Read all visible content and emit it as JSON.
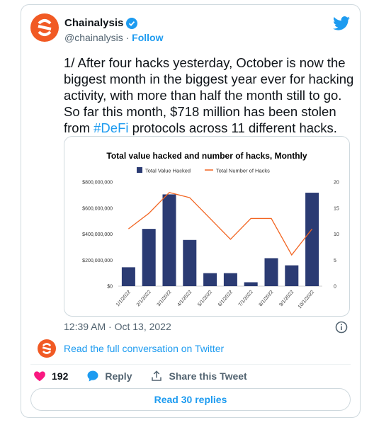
{
  "tweet": {
    "author_name": "Chainalysis",
    "author_handle": "@chainalysis",
    "follow_label": "Follow",
    "text_before_hashtag": "1/ After four hacks yesterday, October is now the biggest month in the biggest year ever for hacking activity, with more than half the month still to go. So far this month, $718 million has been stolen from ",
    "hashtag": "#DeFi",
    "text_after_hashtag": " protocols across 11 different hacks.",
    "timestamp": "12:39 AM · Oct 13, 2022",
    "read_conversation": "Read the full conversation on Twitter",
    "like_count": "192",
    "reply_label": "Reply",
    "share_label": "Share this Tweet",
    "read_replies": "Read 30 replies"
  },
  "colors": {
    "accent": "#1d9bf0",
    "like": "#f91880",
    "brand_orange": "#f15a24",
    "bar": "#2b3b73",
    "line": "#f26522"
  },
  "icons": {
    "logo": "chainalysis-logo-icon",
    "verified": "verified-badge-icon",
    "twitter": "twitter-bird-icon",
    "info": "info-icon",
    "like": "heart-icon",
    "reply": "speech-bubble-icon",
    "share": "share-icon"
  },
  "chart_data": {
    "type": "bar",
    "title": "Total value hacked and number of hacks, Monthly",
    "categories": [
      "1/1/2022",
      "2/1/2022",
      "3/1/2022",
      "4/1/2022",
      "5/1/2022",
      "6/1/2022",
      "7/1/2022",
      "8/1/2022",
      "9/1/2022",
      "10/1/2022"
    ],
    "series": [
      {
        "name": "Total Value Hacked",
        "type": "bar",
        "axis": "left",
        "values": [
          145000000,
          440000000,
          705000000,
          355000000,
          100000000,
          100000000,
          30000000,
          215000000,
          160000000,
          718000000
        ]
      },
      {
        "name": "Total Number of Hacks",
        "type": "line",
        "axis": "right",
        "values": [
          11,
          14,
          18,
          17,
          13,
          9,
          13,
          13,
          6,
          11
        ]
      }
    ],
    "y_left": {
      "min": 0,
      "max": 800000000,
      "ticks": [
        0,
        200000000,
        400000000,
        600000000,
        800000000
      ],
      "tick_labels": [
        "$0",
        "$200,000,000",
        "$400,000,000",
        "$600,000,000",
        "$800,000,000"
      ]
    },
    "y_right": {
      "min": 0,
      "max": 20,
      "ticks": [
        0,
        5,
        10,
        15,
        20
      ],
      "tick_labels": [
        "0",
        "5",
        "10",
        "15",
        "20"
      ]
    },
    "legend_position": "top",
    "grid": false
  }
}
